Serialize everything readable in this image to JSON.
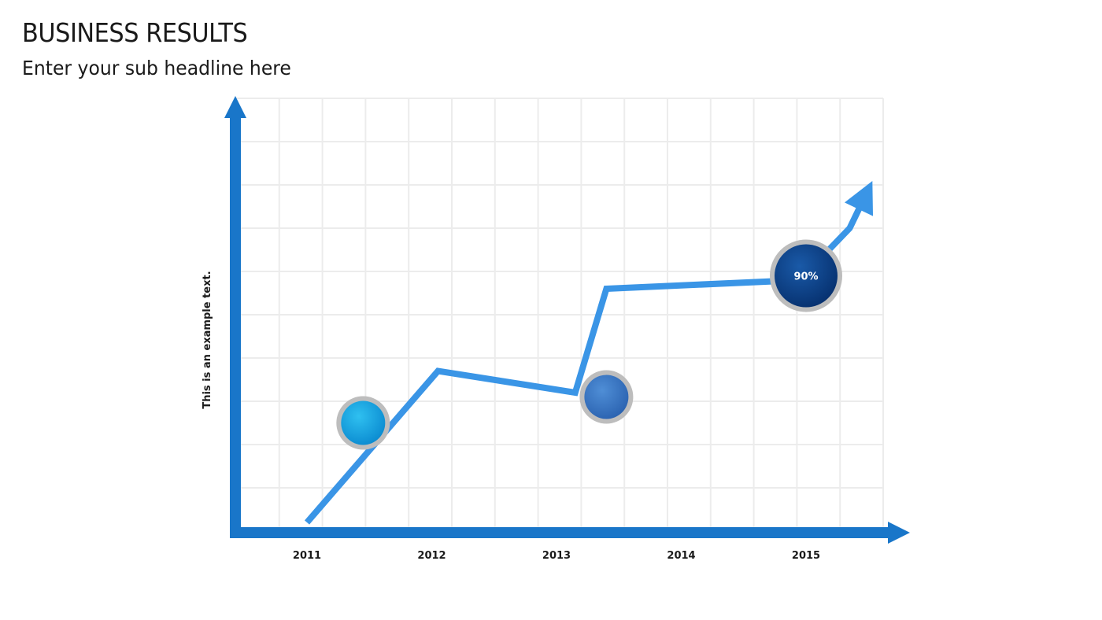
{
  "header": {
    "title": "BUSINESS RESULTS",
    "subtitle": "Enter your sub headline here"
  },
  "chart_data": {
    "type": "line",
    "title": "",
    "xlabel": "",
    "ylabel": "This is an example text.",
    "categories": [
      "2011",
      "2012",
      "2013",
      "2014",
      "2015"
    ],
    "grid": true,
    "series": [
      {
        "x": [
          0.0,
          1.05,
          2.15,
          2.4,
          3.95,
          4.35,
          4.45
        ],
        "values": [
          0.02,
          0.37,
          0.32,
          0.56,
          0.58,
          0.7,
          0.76
        ]
      }
    ],
    "markers": [
      {
        "x": 0.45,
        "y": 0.25,
        "label": "",
        "color": "#1aa3e0"
      },
      {
        "x": 2.4,
        "y": 0.31,
        "label": "",
        "color": "#3b77c2"
      },
      {
        "x": 4.0,
        "y": 0.59,
        "label": "90%",
        "color": "#0c3d86"
      }
    ],
    "colors": {
      "axis": "#1976c9",
      "line": "#3a95e6",
      "grid": "#ececec",
      "marker_ring": "#bdbdbd"
    }
  }
}
